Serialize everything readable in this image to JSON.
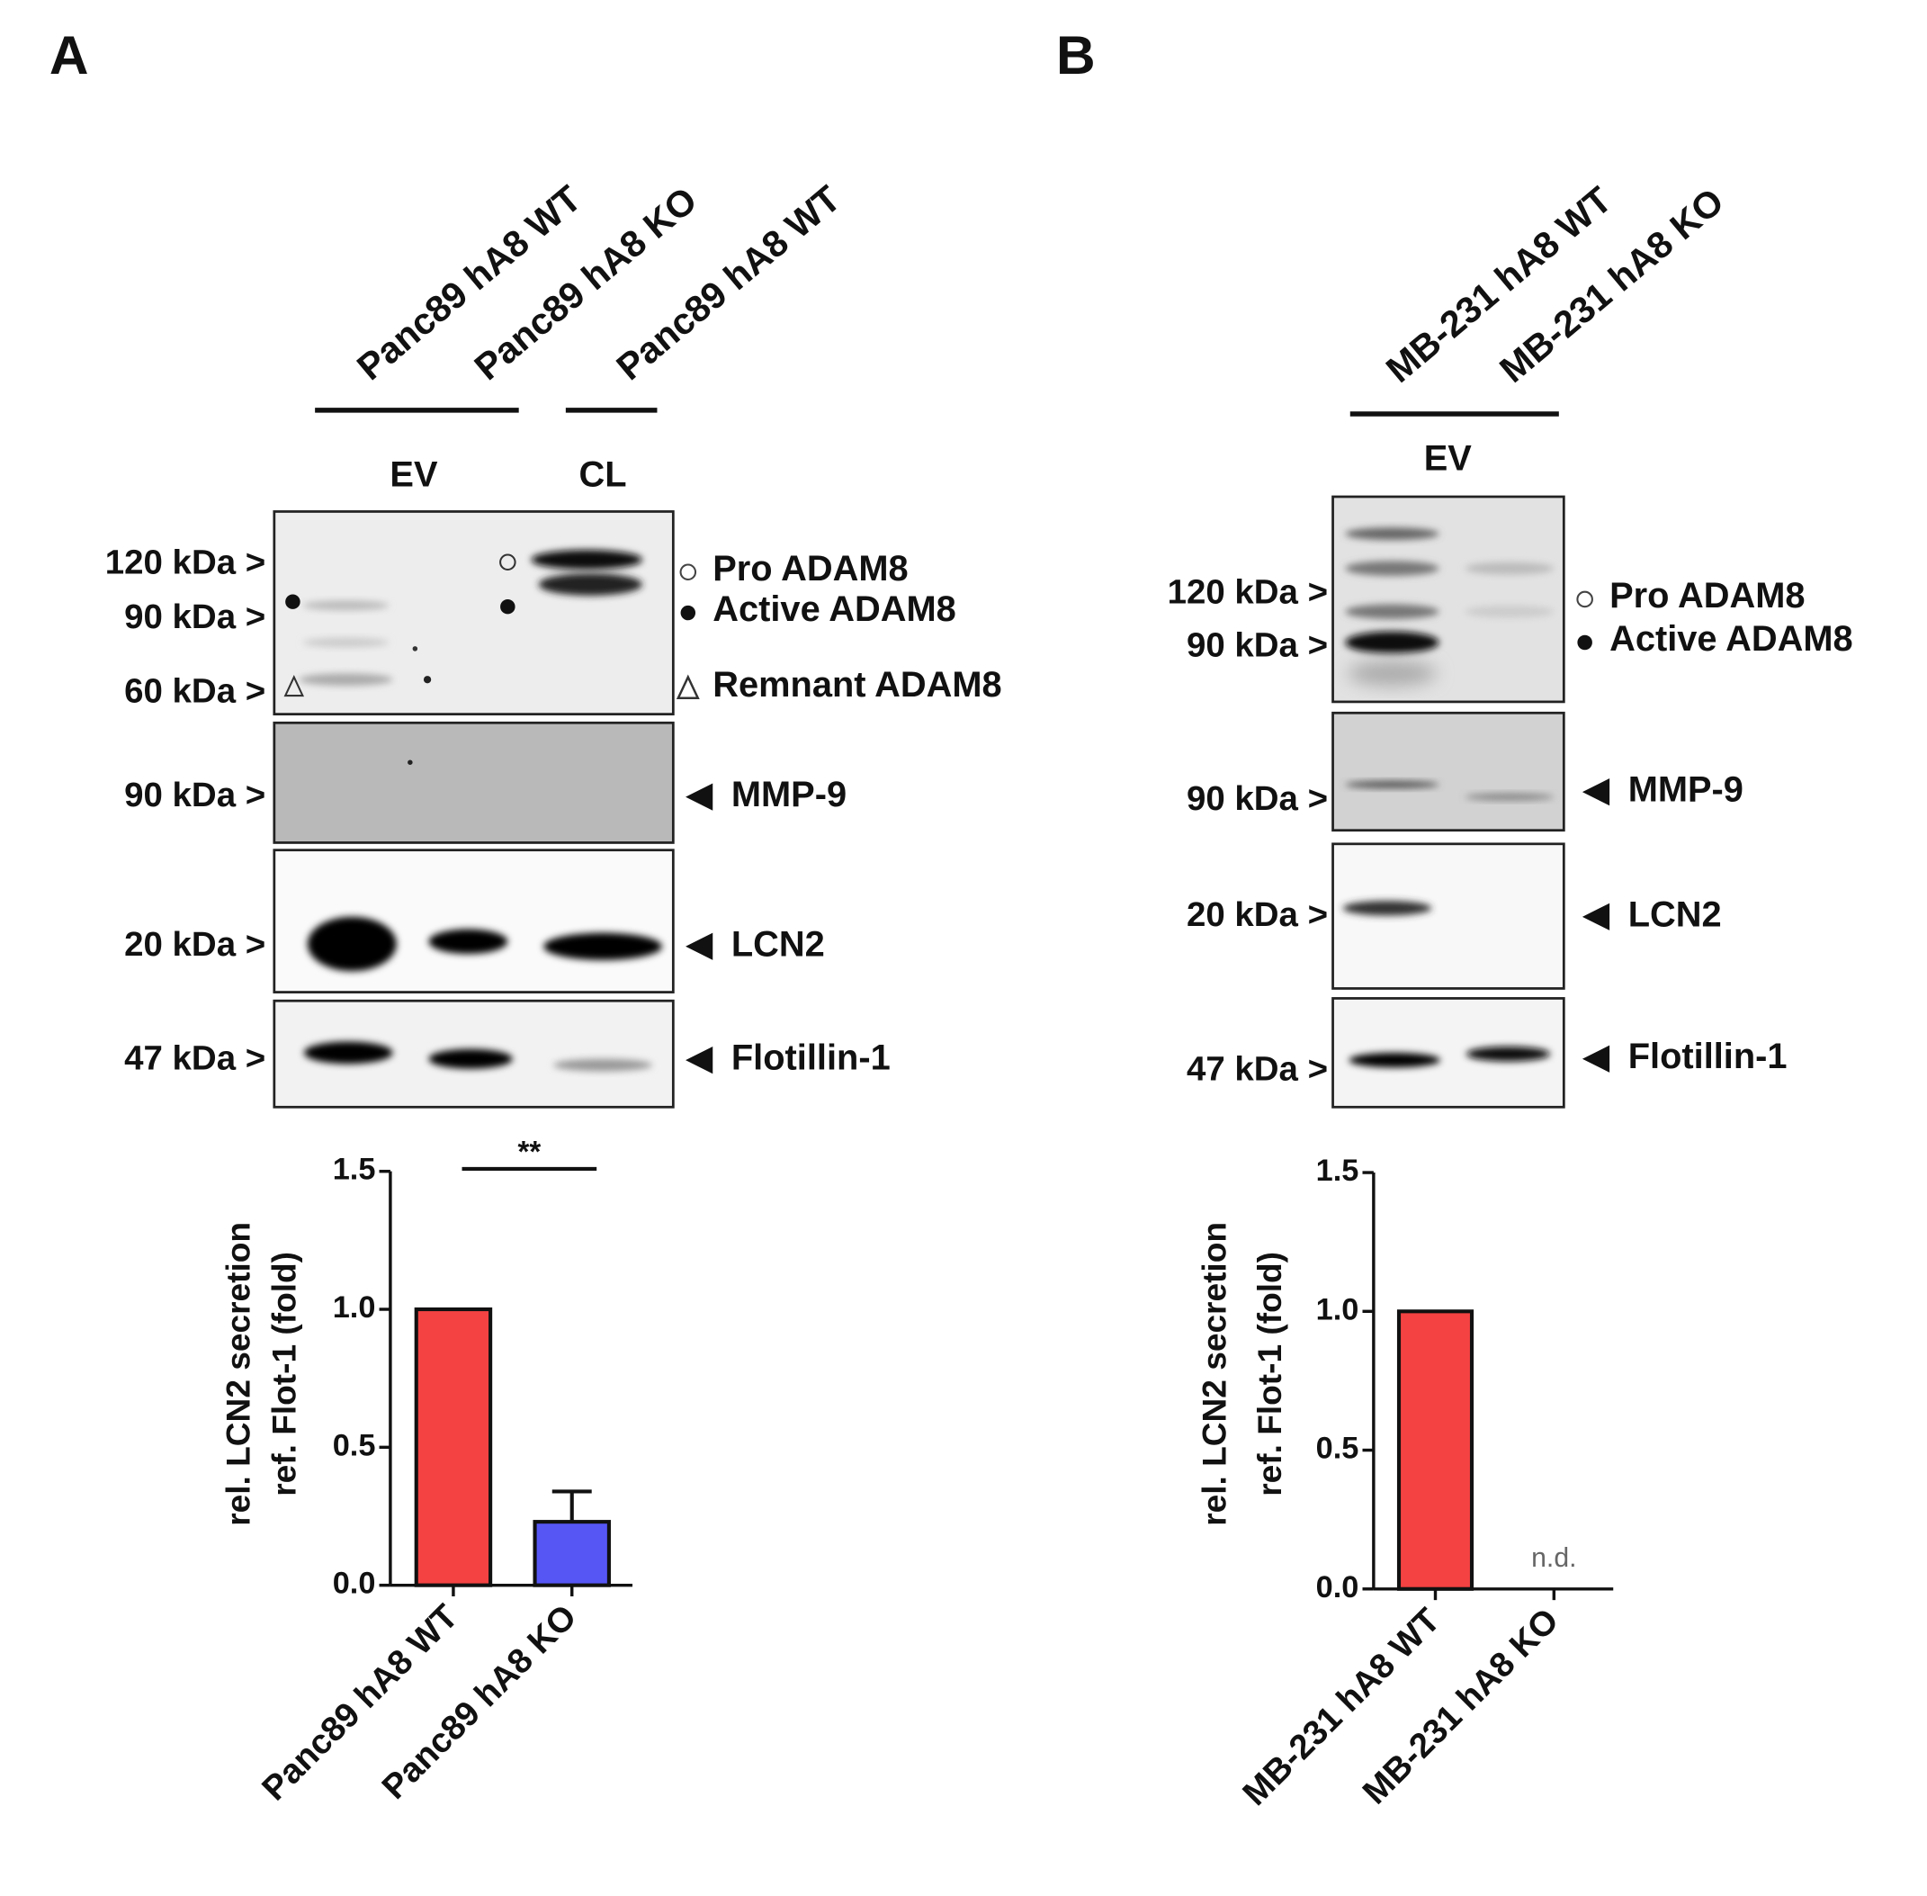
{
  "panel_labels": [
    "A",
    "B"
  ],
  "blots": [
    {
      "lanes": [
        "Panc89 hA8 WT",
        "Panc89 hA8 KO",
        "Panc89 hA8 WT"
      ],
      "groups": [
        "EV",
        "CL"
      ],
      "rows": [
        {
          "markers": [
            "120 kDa >",
            "90 kDa >",
            "60 kDa >"
          ],
          "labels": [
            "Pro ADAM8",
            "Active ADAM8",
            "Remnant ADAM8"
          ]
        },
        {
          "markers": [
            "90 kDa >"
          ],
          "labels": [
            "MMP-9"
          ]
        },
        {
          "markers": [
            "20 kDa >"
          ],
          "labels": [
            "LCN2"
          ]
        },
        {
          "markers": [
            "47 kDa >"
          ],
          "labels": [
            "Flotillin-1"
          ]
        }
      ]
    },
    {
      "lanes": [
        "MB-231 hA8 WT",
        "MB-231 hA8 KO"
      ],
      "groups": [
        "EV"
      ],
      "rows": [
        {
          "markers": [
            "120 kDa >",
            "90 kDa >"
          ],
          "labels": [
            "Pro ADAM8",
            "Active ADAM8"
          ]
        },
        {
          "markers": [
            "90 kDa >"
          ],
          "labels": [
            "MMP-9"
          ]
        },
        {
          "markers": [
            "20 kDa >"
          ],
          "labels": [
            "LCN2"
          ]
        },
        {
          "markers": [
            "47 kDa >"
          ],
          "labels": [
            "Flotillin-1"
          ]
        }
      ]
    }
  ],
  "chart_data": [
    {
      "type": "bar",
      "y_label": [
        "rel. LCN2 secretion",
        "ref. Flot-1 (fold)"
      ],
      "categories": [
        "Panc89 hA8 WT",
        "Panc89 hA8 KO"
      ],
      "values": [
        1.0,
        0.23
      ],
      "errors": [
        null,
        0.11
      ],
      "colors": [
        "#f44242",
        "#5656f5"
      ],
      "ylim": [
        0,
        1.5
      ],
      "yticks": [
        {
          "value": 0,
          "label": "0.0"
        },
        0.5,
        {
          "value": 1,
          "label": "1.0"
        },
        1.5
      ],
      "significance": "**"
    },
    {
      "type": "bar",
      "y_label": [
        "rel. LCN2 secretion",
        "ref. Flot-1 (fold)"
      ],
      "categories": [
        "MB-231 hA8 WT",
        "MB-231 hA8 KO"
      ],
      "values": [
        1.0,
        null
      ],
      "value_labels": [
        null,
        "n.d."
      ],
      "colors": [
        "#f44242",
        "#5656f5"
      ],
      "ylim": [
        0,
        1.5
      ],
      "yticks": [
        {
          "value": 0,
          "label": "0.0"
        },
        0.5,
        {
          "value": 1,
          "label": "1.0"
        },
        1.5
      ]
    }
  ]
}
